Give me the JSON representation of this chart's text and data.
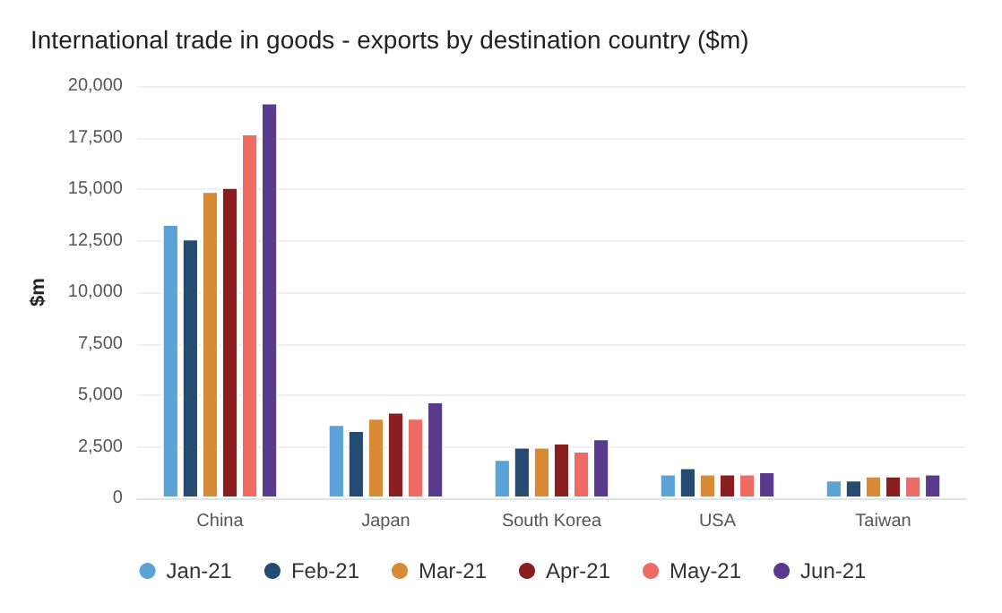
{
  "chart_data": {
    "type": "bar",
    "title": "International trade in goods - exports by destination country ($m)",
    "ylabel": "$m",
    "categories": [
      "China",
      "Japan",
      "South Korea",
      "USA",
      "Taiwan"
    ],
    "series": [
      {
        "name": "Jan-21",
        "color": "#5ba3d6",
        "values": [
          13300,
          3600,
          1900,
          1200,
          900
        ]
      },
      {
        "name": "Feb-21",
        "color": "#264b73",
        "values": [
          12600,
          3300,
          2500,
          1500,
          900
        ]
      },
      {
        "name": "Mar-21",
        "color": "#d98a35",
        "values": [
          14900,
          3900,
          2500,
          1200,
          1100
        ]
      },
      {
        "name": "Apr-21",
        "color": "#8b1f1f",
        "values": [
          15100,
          4200,
          2700,
          1200,
          1100
        ]
      },
      {
        "name": "May-21",
        "color": "#ef6b64",
        "values": [
          17700,
          3900,
          2300,
          1200,
          1100
        ]
      },
      {
        "name": "Jun-21",
        "color": "#5a3a8c",
        "values": [
          19200,
          4700,
          2900,
          1300,
          1200
        ]
      }
    ],
    "ylim": [
      0,
      20000
    ],
    "yticks": [
      0,
      {
        "value": 2500,
        "label": "2,500"
      },
      {
        "value": 5000,
        "label": "5,000"
      },
      {
        "value": 7500,
        "label": "7,500"
      },
      {
        "value": 10000,
        "label": "10,000"
      },
      {
        "value": 12500,
        "label": "12,500"
      },
      {
        "value": 15000,
        "label": "15,000"
      },
      {
        "value": 17500,
        "label": "17,500"
      },
      {
        "value": 20000,
        "label": "20,000"
      }
    ],
    "grid": "y",
    "legend": "bottom"
  }
}
